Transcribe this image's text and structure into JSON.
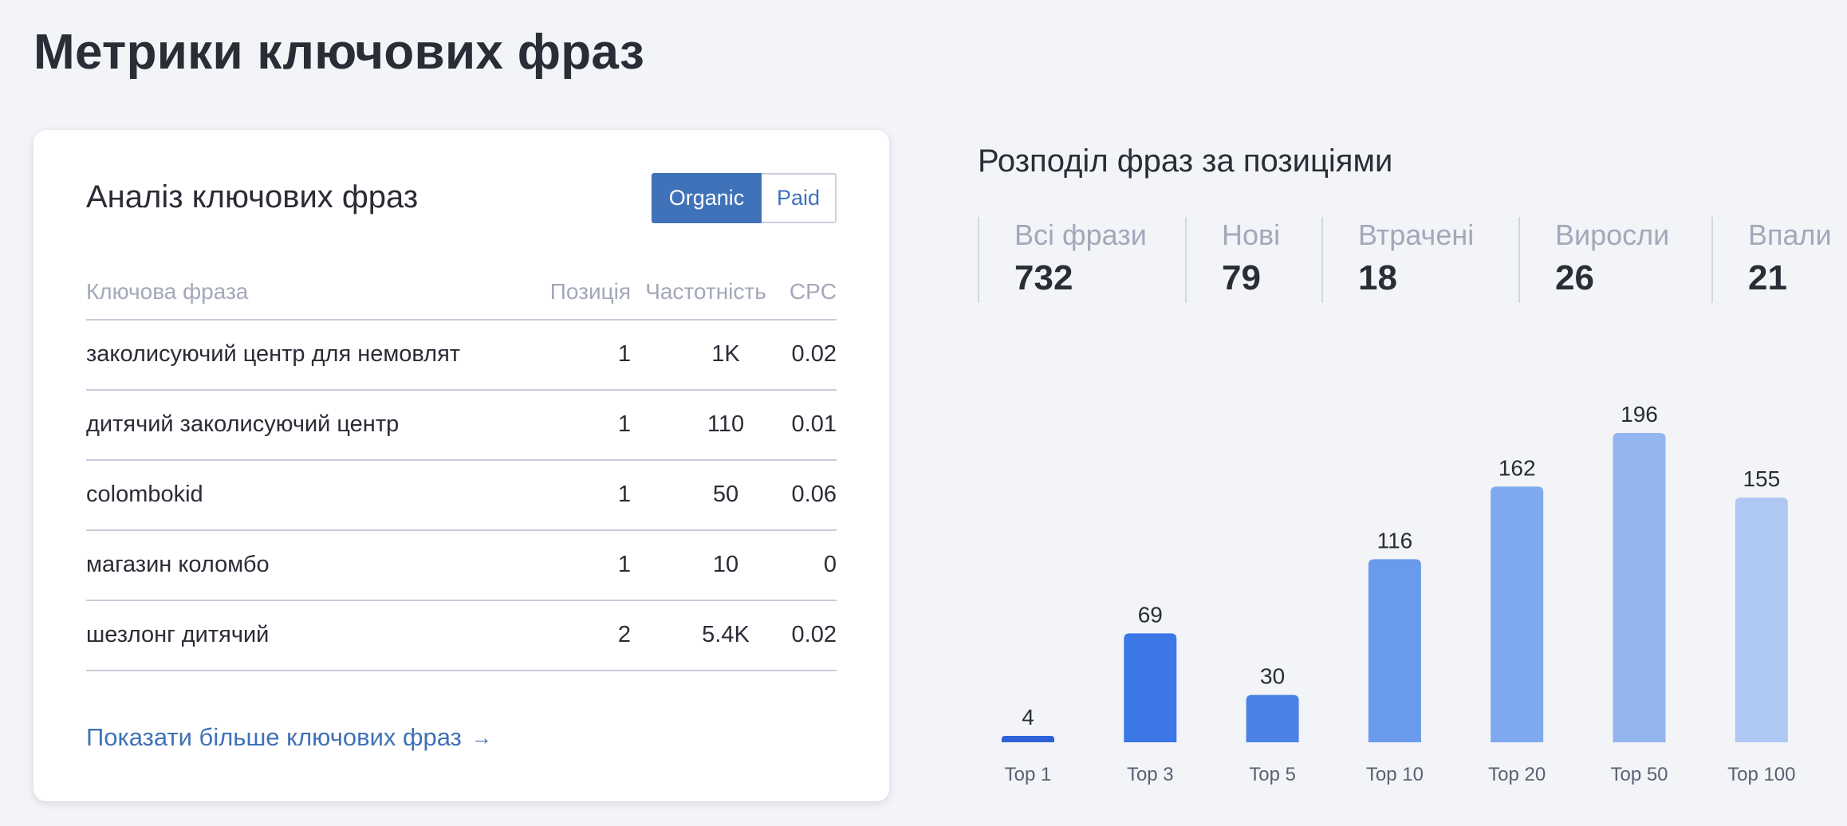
{
  "page": {
    "title": "Метрики ключових фраз"
  },
  "card": {
    "title": "Аналіз ключових фраз",
    "toggle": {
      "organic": "Organic",
      "paid": "Paid",
      "active": "Organic"
    },
    "columns": {
      "keyword": "Ключова фраза",
      "position": "Позиція",
      "frequency": "Частотність",
      "cpc": "CPC"
    },
    "rows": [
      {
        "keyword": "заколисуючий центр для немовлят",
        "position": "1",
        "frequency": "1K",
        "cpc": "0.02"
      },
      {
        "keyword": "дитячий заколисуючий центр",
        "position": "1",
        "frequency": "110",
        "cpc": "0.01"
      },
      {
        "keyword": "colombokid",
        "position": "1",
        "frequency": "50",
        "cpc": "0.06"
      },
      {
        "keyword": "магазин коломбо",
        "position": "1",
        "frequency": "10",
        "cpc": "0"
      },
      {
        "keyword": "шезлонг дитячий",
        "position": "2",
        "frequency": "5.4K",
        "cpc": "0.02"
      }
    ],
    "more_link": "Показати більше ключових фраз",
    "more_link_icon": "arrow-right-icon"
  },
  "distribution": {
    "title": "Розподіл фраз за позиціями",
    "stats": [
      {
        "label": "Всі фрази",
        "value": "732"
      },
      {
        "label": "Нові",
        "value": "79"
      },
      {
        "label": "Втрачені",
        "value": "18"
      },
      {
        "label": "Виросли",
        "value": "26"
      },
      {
        "label": "Впали",
        "value": "21"
      }
    ]
  },
  "chart_data": {
    "type": "bar",
    "categories": [
      "Top 1",
      "Top 3",
      "Top 5",
      "Top 10",
      "Top 20",
      "Top 50",
      "Top 100"
    ],
    "values": [
      4,
      69,
      30,
      116,
      162,
      196,
      155
    ],
    "colors": [
      "#2f62d9",
      "#3b77e6",
      "#4a82e8",
      "#6a9aeb",
      "#7fa9ef",
      "#93b6f0",
      "#aec7f3"
    ],
    "title": "",
    "xlabel": "",
    "ylabel": "",
    "ylim": [
      0,
      196
    ],
    "grid": false,
    "data_labels": true
  }
}
